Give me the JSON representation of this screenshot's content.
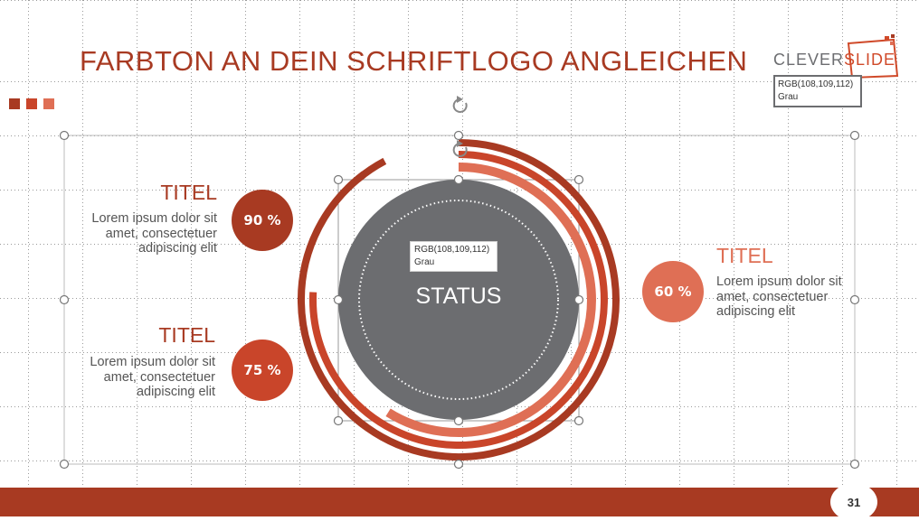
{
  "slide": {
    "title": "FARBTON AN DEIN SCHRIFTLOGO ANGLEICHEN",
    "page_number": "31",
    "colors": {
      "dark_red": "#a83a22",
      "red": "#c9452a",
      "salmon": "#df6f55",
      "gray": "#6c6d70"
    }
  },
  "logo": {
    "part1": "CLEVER",
    "part2": "SLIDE",
    "tooltip_line1": "RGB(108,109,112)",
    "tooltip_line2": "Grau"
  },
  "center": {
    "label": "STATUS",
    "tooltip_line1": "RGB(108,109,112)",
    "tooltip_line2": "Grau"
  },
  "items": [
    {
      "title": "TITEL",
      "text": "Lorem ipsum dolor sit amet, consectetuer adipiscing elit",
      "percent_label": "90 %",
      "value": 90,
      "color": "#a83a22"
    },
    {
      "title": "TITEL",
      "text": "Lorem ipsum dolor sit amet, consectetuer adipiscing elit",
      "percent_label": "75 %",
      "value": 75,
      "color": "#c9452a"
    },
    {
      "title": "TITEL",
      "text": "Lorem ipsum dolor sit amet, consectetuer adipiscing elit",
      "percent_label": "60 %",
      "value": 60,
      "color": "#df6f55"
    }
  ]
}
